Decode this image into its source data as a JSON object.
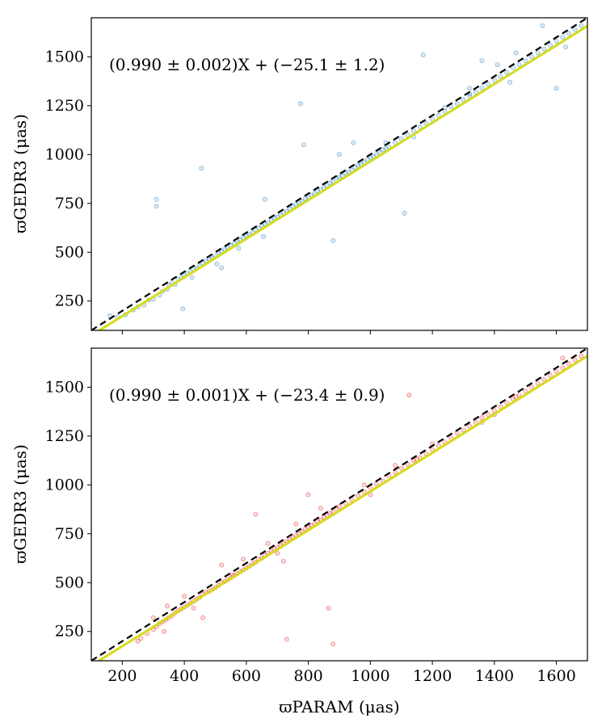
{
  "figure": {
    "xlabel": "ϖPARAM (μas)",
    "x_ticks": [
      "200",
      "400",
      "600",
      "800",
      "1000",
      "1200",
      "1400",
      "1600"
    ]
  },
  "chart_data": [
    {
      "type": "scatter",
      "panel": "top",
      "ylabel": "ϖGEDR3 (μas)",
      "xlabel": "",
      "xlim": [
        100,
        1700
      ],
      "ylim": [
        100,
        1700
      ],
      "y_ticks": [
        "250",
        "500",
        "750",
        "1000",
        "1250",
        "1500"
      ],
      "grid": false,
      "annotation": "(0.990 ± 0.002)X + (−25.1 ± 1.2)",
      "point_color": "#1f77b4",
      "fit_color": "#d4dc1a",
      "reference_color": "#000000",
      "fit": {
        "slope": 0.99,
        "intercept": -25.1
      },
      "reference": {
        "slope": 1.0,
        "intercept": 0
      },
      "points": [
        [
          160,
          175
        ],
        [
          185,
          170
        ],
        [
          210,
          180
        ],
        [
          235,
          205
        ],
        [
          250,
          220
        ],
        [
          270,
          230
        ],
        [
          285,
          255
        ],
        [
          300,
          260
        ],
        [
          310,
          735
        ],
        [
          310,
          770
        ],
        [
          320,
          280
        ],
        [
          330,
          300
        ],
        [
          345,
          310
        ],
        [
          350,
          330
        ],
        [
          360,
          345
        ],
        [
          370,
          335
        ],
        [
          380,
          360
        ],
        [
          390,
          370
        ],
        [
          395,
          210
        ],
        [
          400,
          380
        ],
        [
          410,
          390
        ],
        [
          420,
          400
        ],
        [
          425,
          370
        ],
        [
          430,
          415
        ],
        [
          440,
          420
        ],
        [
          450,
          430
        ],
        [
          455,
          930
        ],
        [
          460,
          445
        ],
        [
          470,
          455
        ],
        [
          480,
          465
        ],
        [
          490,
          470
        ],
        [
          500,
          480
        ],
        [
          505,
          440
        ],
        [
          510,
          500
        ],
        [
          520,
          505
        ],
        [
          530,
          515
        ],
        [
          540,
          520
        ],
        [
          550,
          535
        ],
        [
          560,
          545
        ],
        [
          570,
          560
        ],
        [
          575,
          520
        ],
        [
          580,
          565
        ],
        [
          590,
          575
        ],
        [
          600,
          585
        ],
        [
          610,
          590
        ],
        [
          620,
          600
        ],
        [
          630,
          615
        ],
        [
          640,
          625
        ],
        [
          650,
          635
        ],
        [
          655,
          580
        ],
        [
          660,
          645
        ],
        [
          670,
          650
        ],
        [
          680,
          665
        ],
        [
          690,
          675
        ],
        [
          700,
          680
        ],
        [
          710,
          690
        ],
        [
          720,
          705
        ],
        [
          730,
          710
        ],
        [
          740,
          720
        ],
        [
          750,
          735
        ],
        [
          760,
          745
        ],
        [
          770,
          750
        ],
        [
          775,
          1260
        ],
        [
          780,
          760
        ],
        [
          790,
          775
        ],
        [
          800,
          780
        ],
        [
          810,
          790
        ],
        [
          820,
          800
        ],
        [
          830,
          815
        ],
        [
          840,
          820
        ],
        [
          850,
          830
        ],
        [
          860,
          840
        ],
        [
          870,
          855
        ],
        [
          880,
          860
        ],
        [
          890,
          880
        ],
        [
          900,
          885
        ],
        [
          910,
          890
        ],
        [
          920,
          905
        ],
        [
          930,
          910
        ],
        [
          940,
          920
        ],
        [
          950,
          935
        ],
        [
          960,
          945
        ],
        [
          970,
          950
        ],
        [
          980,
          960
        ],
        [
          990,
          975
        ],
        [
          1000,
          985
        ],
        [
          1010,
          990
        ],
        [
          1020,
          1000
        ],
        [
          1030,
          1010
        ],
        [
          1040,
          1025
        ],
        [
          1050,
          1030
        ],
        [
          1060,
          1040
        ],
        [
          1080,
          1060
        ],
        [
          1100,
          1080
        ],
        [
          1110,
          700
        ],
        [
          1120,
          1100
        ],
        [
          1140,
          1120
        ],
        [
          1160,
          1140
        ],
        [
          1180,
          1160
        ],
        [
          1200,
          1180
        ],
        [
          1220,
          1200
        ],
        [
          1240,
          1220
        ],
        [
          1260,
          1245
        ],
        [
          1280,
          1260
        ],
        [
          1300,
          1280
        ],
        [
          1320,
          1300
        ],
        [
          1340,
          1320
        ],
        [
          1360,
          1340
        ],
        [
          1380,
          1360
        ],
        [
          1400,
          1380
        ],
        [
          1420,
          1400
        ],
        [
          1440,
          1420
        ],
        [
          1460,
          1445
        ],
        [
          1480,
          1460
        ],
        [
          1500,
          1480
        ],
        [
          1520,
          1500
        ],
        [
          1540,
          1520
        ],
        [
          1560,
          1540
        ],
        [
          1580,
          1560
        ],
        [
          1600,
          1580
        ],
        [
          1620,
          1600
        ],
        [
          1640,
          1620
        ],
        [
          1660,
          1640
        ],
        [
          1680,
          1660
        ],
        [
          1555,
          1660
        ],
        [
          1360,
          1480
        ],
        [
          1630,
          1550
        ],
        [
          1170,
          1510
        ],
        [
          945,
          1060
        ],
        [
          880,
          560
        ],
        [
          785,
          1050
        ],
        [
          1450,
          1370
        ],
        [
          1470,
          1520
        ],
        [
          1410,
          1460
        ],
        [
          1320,
          1340
        ],
        [
          1140,
          1090
        ],
        [
          900,
          1000
        ],
        [
          660,
          770
        ],
        [
          520,
          420
        ],
        [
          1600,
          1340
        ],
        [
          1240,
          1240
        ],
        [
          1320,
          1310
        ],
        [
          1050,
          1060
        ]
      ]
    },
    {
      "type": "scatter",
      "panel": "bottom",
      "ylabel": "ϖGEDR3 (μas)",
      "xlabel": "ϖPARAM (μas)",
      "xlim": [
        100,
        1700
      ],
      "ylim": [
        100,
        1700
      ],
      "y_ticks": [
        "250",
        "500",
        "750",
        "1000",
        "1250",
        "1500"
      ],
      "grid": false,
      "annotation": "(0.990 ± 0.001)X + (−23.4 ± 0.9)",
      "point_color": "#e6191c",
      "fit_color": "#d4dc1a",
      "reference_color": "#000000",
      "fit": {
        "slope": 0.99,
        "intercept": -23.4
      },
      "reference": {
        "slope": 1.0,
        "intercept": 0
      },
      "points": [
        [
          250,
          200
        ],
        [
          260,
          215
        ],
        [
          280,
          240
        ],
        [
          300,
          260
        ],
        [
          310,
          275
        ],
        [
          320,
          290
        ],
        [
          330,
          300
        ],
        [
          335,
          250
        ],
        [
          340,
          310
        ],
        [
          350,
          320
        ],
        [
          360,
          330
        ],
        [
          370,
          345
        ],
        [
          380,
          355
        ],
        [
          390,
          365
        ],
        [
          400,
          375
        ],
        [
          410,
          385
        ],
        [
          420,
          395
        ],
        [
          430,
          405
        ],
        [
          440,
          415
        ],
        [
          450,
          425
        ],
        [
          460,
          440
        ],
        [
          470,
          450
        ],
        [
          480,
          455
        ],
        [
          490,
          465
        ],
        [
          500,
          475
        ],
        [
          510,
          485
        ],
        [
          520,
          500
        ],
        [
          530,
          505
        ],
        [
          540,
          515
        ],
        [
          550,
          525
        ],
        [
          560,
          535
        ],
        [
          570,
          545
        ],
        [
          580,
          555
        ],
        [
          590,
          565
        ],
        [
          600,
          575
        ],
        [
          610,
          585
        ],
        [
          620,
          595
        ],
        [
          630,
          605
        ],
        [
          640,
          620
        ],
        [
          650,
          625
        ],
        [
          660,
          640
        ],
        [
          670,
          650
        ],
        [
          680,
          660
        ],
        [
          690,
          670
        ],
        [
          700,
          680
        ],
        [
          710,
          690
        ],
        [
          720,
          700
        ],
        [
          730,
          710
        ],
        [
          740,
          720
        ],
        [
          750,
          730
        ],
        [
          760,
          740
        ],
        [
          770,
          750
        ],
        [
          780,
          760
        ],
        [
          790,
          775
        ],
        [
          800,
          785
        ],
        [
          810,
          790
        ],
        [
          820,
          800
        ],
        [
          830,
          815
        ],
        [
          840,
          820
        ],
        [
          850,
          835
        ],
        [
          860,
          845
        ],
        [
          870,
          855
        ],
        [
          880,
          860
        ],
        [
          890,
          880
        ],
        [
          900,
          890
        ],
        [
          920,
          905
        ],
        [
          940,
          925
        ],
        [
          960,
          945
        ],
        [
          980,
          965
        ],
        [
          1000,
          985
        ],
        [
          1020,
          1005
        ],
        [
          1040,
          1020
        ],
        [
          1060,
          1045
        ],
        [
          1080,
          1065
        ],
        [
          1100,
          1085
        ],
        [
          1120,
          1105
        ],
        [
          1140,
          1125
        ],
        [
          1160,
          1140
        ],
        [
          1180,
          1160
        ],
        [
          1200,
          1180
        ],
        [
          1220,
          1200
        ],
        [
          1240,
          1220
        ],
        [
          1260,
          1240
        ],
        [
          1280,
          1265
        ],
        [
          1300,
          1280
        ],
        [
          1320,
          1300
        ],
        [
          1340,
          1320
        ],
        [
          1360,
          1345
        ],
        [
          1380,
          1360
        ],
        [
          1400,
          1380
        ],
        [
          1420,
          1400
        ],
        [
          1440,
          1420
        ],
        [
          1460,
          1440
        ],
        [
          1480,
          1460
        ],
        [
          1500,
          1480
        ],
        [
          1520,
          1500
        ],
        [
          1540,
          1520
        ],
        [
          1560,
          1540
        ],
        [
          1580,
          1560
        ],
        [
          1600,
          1580
        ],
        [
          1620,
          1600
        ],
        [
          1640,
          1620
        ],
        [
          1660,
          1640
        ],
        [
          1680,
          1660
        ],
        [
          1125,
          1460
        ],
        [
          865,
          370
        ],
        [
          880,
          185
        ],
        [
          730,
          210
        ],
        [
          630,
          850
        ],
        [
          555,
          540
        ],
        [
          720,
          610
        ],
        [
          460,
          320
        ],
        [
          520,
          590
        ],
        [
          800,
          950
        ],
        [
          1200,
          1210
        ],
        [
          1360,
          1320
        ],
        [
          1620,
          1650
        ],
        [
          980,
          1000
        ],
        [
          1080,
          1100
        ],
        [
          400,
          430
        ],
        [
          345,
          380
        ],
        [
          300,
          320
        ],
        [
          760,
          800
        ],
        [
          840,
          880
        ],
        [
          1000,
          950
        ],
        [
          1150,
          1130
        ],
        [
          1400,
          1360
        ],
        [
          1470,
          1450
        ],
        [
          430,
          370
        ],
        [
          590,
          620
        ],
        [
          670,
          700
        ],
        [
          700,
          650
        ]
      ]
    }
  ]
}
